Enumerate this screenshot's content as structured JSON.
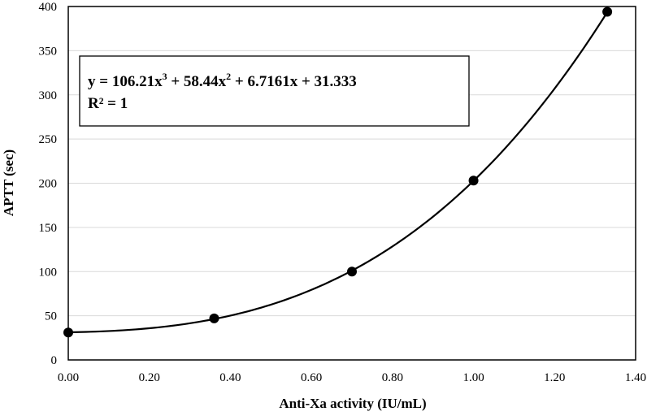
{
  "chart_data": {
    "type": "scatter",
    "title": "",
    "xlabel": "Anti-Xa activity (IU/mL)",
    "ylabel": "APTT (sec)",
    "xlim": [
      0,
      1.4
    ],
    "ylim": [
      0,
      400
    ],
    "x_ticks": [
      "0.00",
      "0.20",
      "0.40",
      "0.60",
      "0.80",
      "1.00",
      "1.20",
      "1.40"
    ],
    "y_ticks": [
      "0",
      "50",
      "100",
      "150",
      "200",
      "250",
      "300",
      "350",
      "400"
    ],
    "grid": true,
    "legend": "none",
    "series": [
      {
        "x": [
          0.0,
          0.36,
          0.7,
          1.0,
          1.33
        ],
        "y": [
          31,
          47,
          100,
          203,
          394
        ]
      }
    ],
    "trendline": {
      "type": "polynomial",
      "degree": 3,
      "coefficients": [
        106.21,
        58.44,
        6.7161,
        31.333
      ],
      "equation_parts": [
        "y = 106.21x",
        "3",
        " + 58.44x",
        "2",
        " + 6.7161x + 31.333"
      ],
      "r_squared": "R² = 1"
    },
    "colors": {
      "marker": "#000000",
      "line": "#000000",
      "grid": "#d9d9d9"
    }
  }
}
